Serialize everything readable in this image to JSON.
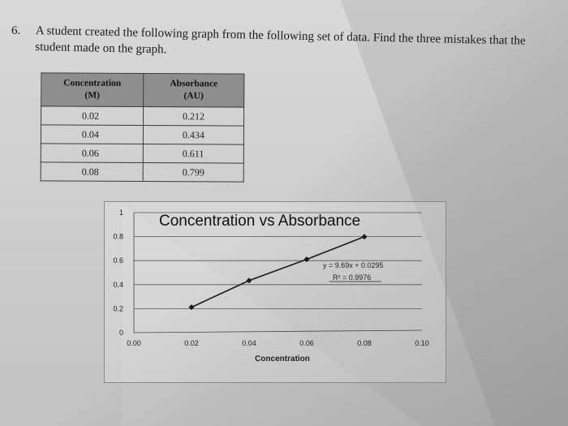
{
  "question": {
    "number": "6.",
    "text": "A student created the following graph from the following set of data. Find the three mistakes that the student made on the graph."
  },
  "table": {
    "headers": [
      {
        "line1": "Concentration",
        "line2": "(M)"
      },
      {
        "line1": "Absorbance",
        "line2": "(AU)"
      }
    ],
    "rows": [
      [
        "0.02",
        "0.212"
      ],
      [
        "0.04",
        "0.434"
      ],
      [
        "0.06",
        "0.611"
      ],
      [
        "0.08",
        "0.799"
      ]
    ]
  },
  "chart_data": {
    "type": "line",
    "title": "Concentration vs Absorbance",
    "xlabel": "Concentration",
    "ylabel": "",
    "x_ticks": [
      "0.00",
      "0.02",
      "0.04",
      "0.06",
      "0.08",
      "0.10"
    ],
    "y_ticks": [
      "0",
      "0.2",
      "0.4",
      "0.6",
      "0.8",
      "1"
    ],
    "xlim": [
      0,
      0.1
    ],
    "ylim": [
      0,
      1
    ],
    "grid": true,
    "series": [
      {
        "x": [
          0.02,
          0.04,
          0.06,
          0.08
        ],
        "y": [
          0.212,
          0.434,
          0.611,
          0.799
        ]
      }
    ],
    "trendline_equation": "y = 9.69x + 0.0295",
    "r_squared": "R² = 0.9976",
    "line_color": "#1a1a1a"
  }
}
